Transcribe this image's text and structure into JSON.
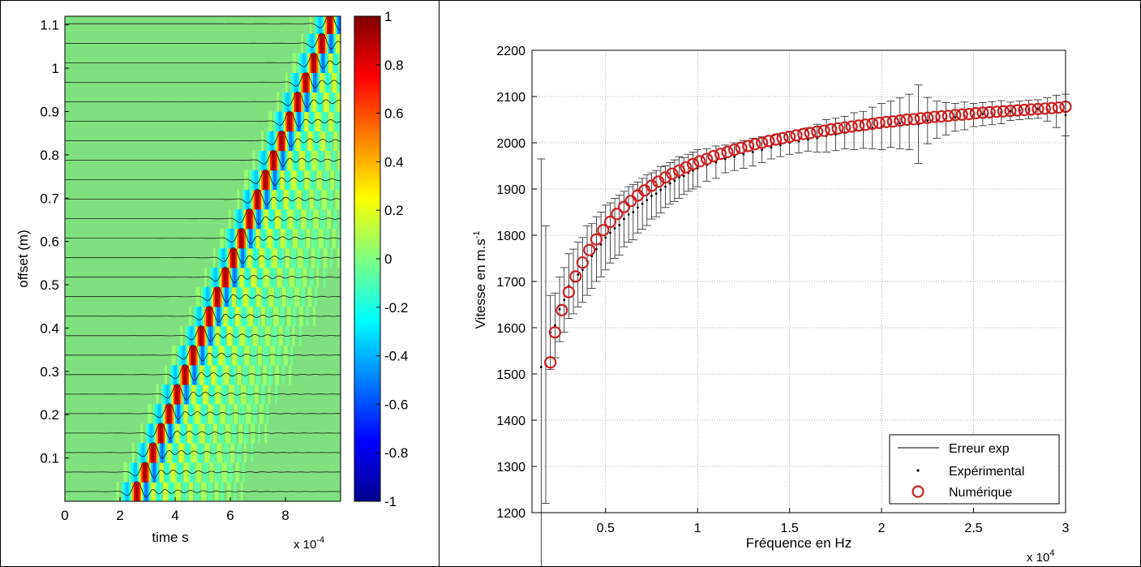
{
  "chart_data": [
    {
      "type": "heatmap",
      "xlabel": "time s",
      "ylabel": "offset (m)",
      "x_multiplier": "x 10",
      "x_multiplier_exp": "-4",
      "xlim": [
        0,
        10
      ],
      "ylim": [
        0,
        1.12
      ],
      "xticks": [
        "0",
        "2",
        "4",
        "6",
        "8"
      ],
      "yticks": [
        "0.1",
        "0.2",
        "0.3",
        "0.4",
        "0.5",
        "0.6",
        "0.7",
        "0.8",
        "0.9",
        "1",
        "1.1"
      ],
      "colorbar": {
        "min": -1,
        "max": 1,
        "ticks": [
          "1",
          "0.8",
          "0.6",
          "0.4",
          "0.2",
          "0",
          "-0.2",
          "-0.4",
          "-0.6",
          "-0.8",
          "-1"
        ]
      },
      "traces": {
        "count": 25,
        "offset_step": 0.045,
        "arrival_start": 2.6,
        "arrival_end": 9.6,
        "dominant_period": 0.42
      }
    },
    {
      "type": "scatter",
      "xlabel": "Fréquence en Hz",
      "ylabel": "Vitesse en m.s",
      "ylabel_exp": "-1",
      "x_multiplier": "x 10",
      "x_multiplier_exp": "4",
      "xlim": [
        0.1,
        3.0
      ],
      "ylim": [
        1200,
        2200
      ],
      "grid": true,
      "xticks": [
        "0.5",
        "1",
        "1.5",
        "2",
        "2.5",
        "3"
      ],
      "yticks": [
        "1200",
        "1300",
        "1400",
        "1500",
        "1600",
        "1700",
        "1800",
        "1900",
        "2000",
        "2100",
        "2200"
      ],
      "legend": {
        "position": "bottom-right",
        "entries": [
          "Erreur exp",
          "Expérimental",
          "Numérique"
        ]
      },
      "series": [
        {
          "name": "Numérique",
          "color": "#cc2020",
          "x": [
            0.2,
            0.225,
            0.262,
            0.3,
            0.337,
            0.375,
            0.412,
            0.45,
            0.487,
            0.525,
            0.562,
            0.6,
            0.637,
            0.675,
            0.712,
            0.75,
            0.787,
            0.825,
            0.862,
            0.9,
            0.937,
            0.975,
            1.012,
            1.05,
            1.087,
            1.125,
            1.162,
            1.2,
            1.237,
            1.275,
            1.312,
            1.35,
            1.387,
            1.425,
            1.462,
            1.5,
            1.537,
            1.575,
            1.612,
            1.65,
            1.687,
            1.725,
            1.762,
            1.8,
            1.837,
            1.875,
            1.912,
            1.95,
            1.987,
            2.025,
            2.062,
            2.1,
            2.137,
            2.175,
            2.212,
            2.25,
            2.287,
            2.325,
            2.362,
            2.4,
            2.437,
            2.475,
            2.512,
            2.55,
            2.587,
            2.625,
            2.662,
            2.7,
            2.737,
            2.775,
            2.812,
            2.85,
            2.887,
            2.925,
            2.962,
            3.0
          ],
          "y": [
            1525,
            1590,
            1638,
            1677,
            1711,
            1741,
            1768,
            1791,
            1811,
            1829,
            1846,
            1861,
            1874,
            1886,
            1897,
            1907,
            1916,
            1925,
            1933,
            1940,
            1947,
            1954,
            1960,
            1965,
            1971,
            1976,
            1980,
            1985,
            1989,
            1993,
            1997,
            2000,
            2004,
            2007,
            2010,
            2013,
            2016,
            2019,
            2021,
            2024,
            2026,
            2029,
            2031,
            2033,
            2035,
            2037,
            2039,
            2041,
            2043,
            2045,
            2046,
            2048,
            2050,
            2051,
            2053,
            2054,
            2056,
            2057,
            2058,
            2060,
            2061,
            2062,
            2064,
            2065,
            2066,
            2067,
            2068,
            2069,
            2070,
            2071,
            2072,
            2073,
            2074,
            2075,
            2076,
            2078
          ]
        },
        {
          "name": "Expérimental",
          "color": "#000000",
          "x": [
            0.15,
            0.175,
            0.2,
            0.225,
            0.25,
            0.275,
            0.3,
            0.325,
            0.35,
            0.375,
            0.4,
            0.425,
            0.45,
            0.475,
            0.5,
            0.525,
            0.55,
            0.575,
            0.6,
            0.625,
            0.65,
            0.675,
            0.7,
            0.725,
            0.75,
            0.775,
            0.8,
            0.825,
            0.85,
            0.875,
            0.9,
            0.925,
            0.95,
            0.975,
            1.0,
            1.05,
            1.1,
            1.15,
            1.2,
            1.25,
            1.3,
            1.35,
            1.4,
            1.45,
            1.5,
            1.55,
            1.6,
            1.65,
            1.7,
            1.75,
            1.8,
            1.85,
            1.9,
            1.95,
            2.0,
            2.05,
            2.1,
            2.15,
            2.2,
            2.25,
            2.3,
            2.35,
            2.4,
            2.45,
            2.5,
            2.55,
            2.6,
            2.65,
            2.7,
            2.75,
            2.8,
            2.85,
            2.9,
            2.95,
            3.0
          ],
          "y": [
            1515,
            1520,
            1590,
            1605,
            1640,
            1660,
            1690,
            1700,
            1715,
            1725,
            1745,
            1755,
            1770,
            1780,
            1795,
            1805,
            1815,
            1822,
            1835,
            1845,
            1850,
            1860,
            1868,
            1876,
            1885,
            1890,
            1898,
            1905,
            1912,
            1918,
            1925,
            1928,
            1935,
            1940,
            1945,
            1952,
            1958,
            1965,
            1970,
            1975,
            1980,
            1985,
            1990,
            1995,
            2000,
            2003,
            2007,
            2010,
            2015,
            2018,
            2022,
            2025,
            2028,
            2032,
            2035,
            2040,
            2042,
            2045,
            2040,
            2048,
            2050,
            2052,
            2055,
            2058,
            2060,
            2062,
            2064,
            2066,
            2068,
            2070,
            2072,
            2073,
            2072,
            2068,
            2060
          ],
          "err": [
            450,
            300,
            80,
            70,
            70,
            70,
            70,
            70,
            70,
            70,
            75,
            70,
            70,
            70,
            70,
            65,
            65,
            65,
            60,
            60,
            60,
            55,
            55,
            55,
            50,
            50,
            50,
            45,
            45,
            45,
            45,
            40,
            40,
            40,
            40,
            35,
            35,
            30,
            30,
            30,
            30,
            28,
            25,
            25,
            25,
            25,
            25,
            30,
            35,
            35,
            35,
            40,
            40,
            45,
            50,
            50,
            55,
            60,
            85,
            50,
            40,
            35,
            30,
            30,
            25,
            25,
            25,
            25,
            20,
            20,
            20,
            20,
            25,
            35,
            45
          ]
        }
      ]
    }
  ]
}
